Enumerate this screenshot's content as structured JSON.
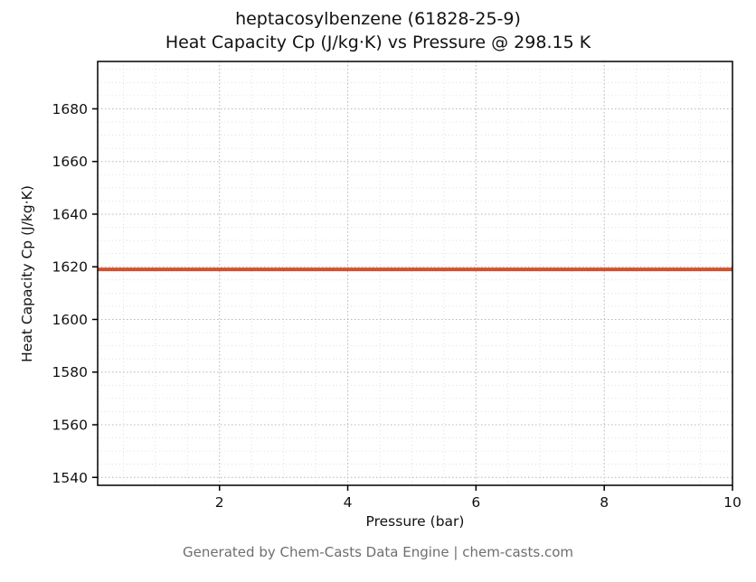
{
  "header": {
    "title_line1": "heptacosylbenzene (61828-25-9)",
    "title_line2": "Heat Capacity Cp (J/kg·K) vs Pressure @ 298.15 K"
  },
  "footer": {
    "text": "Generated by Chem-Casts Data Engine | chem-casts.com"
  },
  "chart_data": {
    "type": "line",
    "title": "heptacosylbenzene (61828-25-9)\nHeat Capacity Cp (J/kg·K) vs Pressure @ 298.15 K",
    "xlabel": "Pressure (bar)",
    "ylabel": "Heat Capacity Cp (J/kg·K)",
    "x": [
      0.1,
      1,
      2,
      3,
      4,
      5,
      6,
      7,
      8,
      9,
      10
    ],
    "series": [
      {
        "name": "Cp",
        "values": [
          1619,
          1619,
          1619,
          1619,
          1619,
          1619,
          1619,
          1619,
          1619,
          1619,
          1619
        ]
      }
    ],
    "xlim": [
      0.1,
      10
    ],
    "ylim": [
      1537,
      1698
    ],
    "xticks": [
      2,
      4,
      6,
      8,
      10
    ],
    "yticks": [
      1540,
      1560,
      1580,
      1600,
      1620,
      1640,
      1660,
      1680
    ],
    "x_minor_step": 0.5,
    "y_minor_step": 5,
    "grid": true,
    "grid_style": "dotted",
    "legend": "none",
    "line_color": "#d2512d",
    "line_width": 4,
    "major_grid_color": "#b8b8b8",
    "minor_grid_color": "#d9d9d9",
    "spine_color": "#000000",
    "tick_label_color": "#111111"
  }
}
